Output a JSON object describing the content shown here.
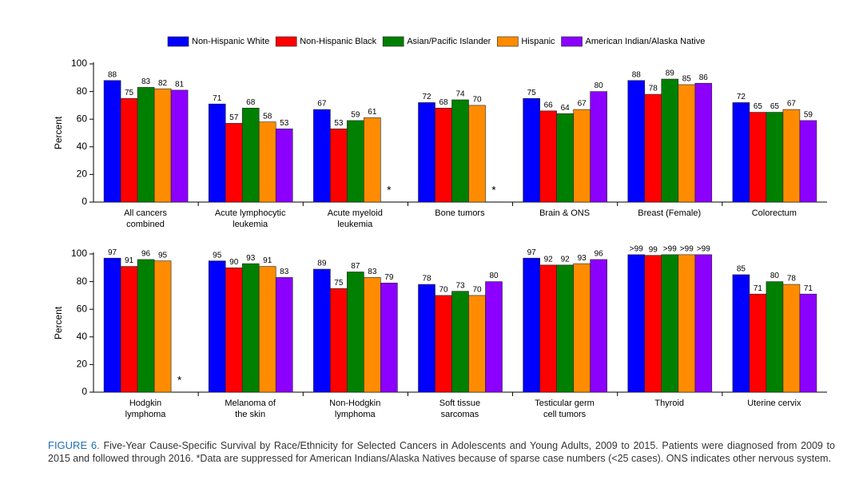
{
  "chart_data": [
    {
      "type": "bar",
      "ylabel": "Percent",
      "legend": "top",
      "categories": [
        "All cancers\ncombined",
        "Acute lymphocytic\nleukemia",
        "Acute myeloid\nleukemia",
        "Bone tumors",
        "Brain & ONS",
        "Breast (Female)",
        "Colorectum"
      ],
      "ylim": [
        0,
        100
      ],
      "yticks": [
        0,
        20,
        40,
        60,
        80,
        100
      ],
      "series": [
        {
          "name": "Non-Hispanic White",
          "color": "#0000ff",
          "values": [
            88,
            71,
            67,
            72,
            75,
            88,
            72
          ]
        },
        {
          "name": "Non-Hispanic Black",
          "color": "#ff0000",
          "values": [
            75,
            57,
            53,
            68,
            66,
            78,
            65
          ]
        },
        {
          "name": "Asian/Pacific Islander",
          "color": "#008000",
          "values": [
            83,
            68,
            59,
            74,
            64,
            89,
            65
          ]
        },
        {
          "name": "Hispanic",
          "color": "#ff8c00",
          "values": [
            82,
            58,
            61,
            70,
            67,
            85,
            67
          ]
        },
        {
          "name": "American Indian/Alaska Native",
          "color": "#8b00ff",
          "values": [
            81,
            53,
            null,
            null,
            80,
            86,
            59
          ],
          "value_labels": [
            "81",
            "53",
            "*",
            "*",
            "80",
            "86",
            "59"
          ]
        }
      ]
    },
    {
      "type": "bar",
      "ylabel": "Percent",
      "categories": [
        "Hodgkin\nlymphoma",
        "Melanoma of\nthe skin",
        "Non-Hodgkin\nlymphoma",
        "Soft tissue\nsarcomas",
        "Testicular germ\ncell tumors",
        "Thyroid",
        "Uterine cervix"
      ],
      "ylim": [
        0,
        100
      ],
      "yticks": [
        0,
        20,
        40,
        60,
        80,
        100
      ],
      "series": [
        {
          "color": "#0000ff",
          "values": [
            97,
            95,
            89,
            78,
            97,
            99.5,
            85
          ],
          "value_labels": [
            "97",
            "95",
            "89",
            "78",
            "97",
            ">99",
            "85"
          ]
        },
        {
          "color": "#ff0000",
          "values": [
            91,
            90,
            75,
            70,
            92,
            99,
            71
          ]
        },
        {
          "color": "#008000",
          "values": [
            96,
            93,
            87,
            73,
            92,
            99.5,
            80
          ],
          "value_labels": [
            "96",
            "93",
            "87",
            "73",
            "92",
            ">99",
            "80"
          ]
        },
        {
          "color": "#ff8c00",
          "values": [
            95,
            91,
            83,
            70,
            93,
            99.5,
            78
          ],
          "value_labels": [
            "95",
            "91",
            "83",
            "70",
            "93",
            ">99",
            "78"
          ]
        },
        {
          "color": "#8b00ff",
          "values": [
            null,
            83,
            79,
            80,
            96,
            99.5,
            71
          ],
          "value_labels": [
            "*",
            "83",
            "79",
            "80",
            "96",
            ">99",
            "71"
          ]
        }
      ]
    }
  ],
  "caption": {
    "label": "FIGURE 6.",
    "text": "Five-Year Cause-Specific Survival by Race/Ethnicity for Selected Cancers in Adolescents and Young Adults, 2009 to 2015. Patients were diagnosed from 2009 to 2015 and followed through 2016. *Data are suppressed for American Indians/Alaska Natives because of sparse case numbers (<25 cases). ONS indicates other nervous system."
  }
}
